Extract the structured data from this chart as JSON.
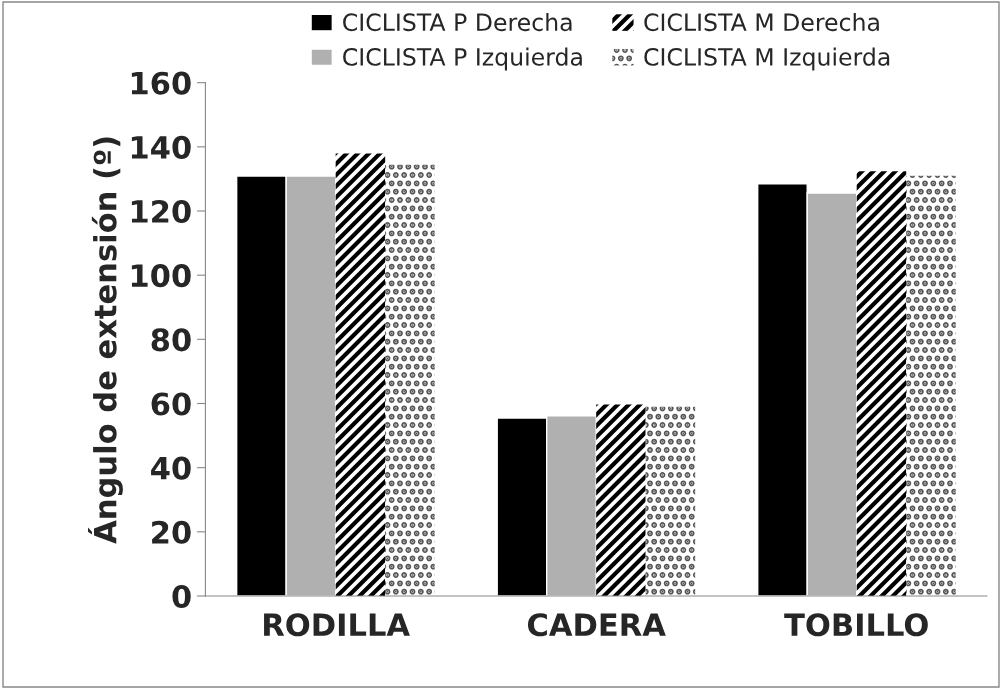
{
  "chart_data": {
    "type": "bar",
    "categories": [
      "RODILLA",
      "CADERA",
      "TOBILLO"
    ],
    "ylabel": "Ángulo de extensión (º)",
    "series": [
      {
        "name": "CICLISTA P Derecha",
        "color": "#000000",
        "values": [
          130.9,
          55.5,
          128.5
        ]
      },
      {
        "name": "CICLISTA P Izquierda",
        "color": "#b0b0b0",
        "values": [
          130.9,
          56.2,
          125.6
        ]
      },
      {
        "name": "CICLISTA M Derecha",
        "color": "#000000",
        "values": [
          137.9,
          59.7,
          132.4
        ]
      },
      {
        "name": "CICLISTA M Izquierda",
        "color": "#555555",
        "values": [
          134.4,
          59.0,
          131.0
        ]
      }
    ],
    "ylim": [
      0,
      160
    ],
    "yticks": [
      0,
      20,
      40,
      60,
      80,
      100,
      120,
      140,
      160
    ],
    "grid": false,
    "legend": "top"
  }
}
